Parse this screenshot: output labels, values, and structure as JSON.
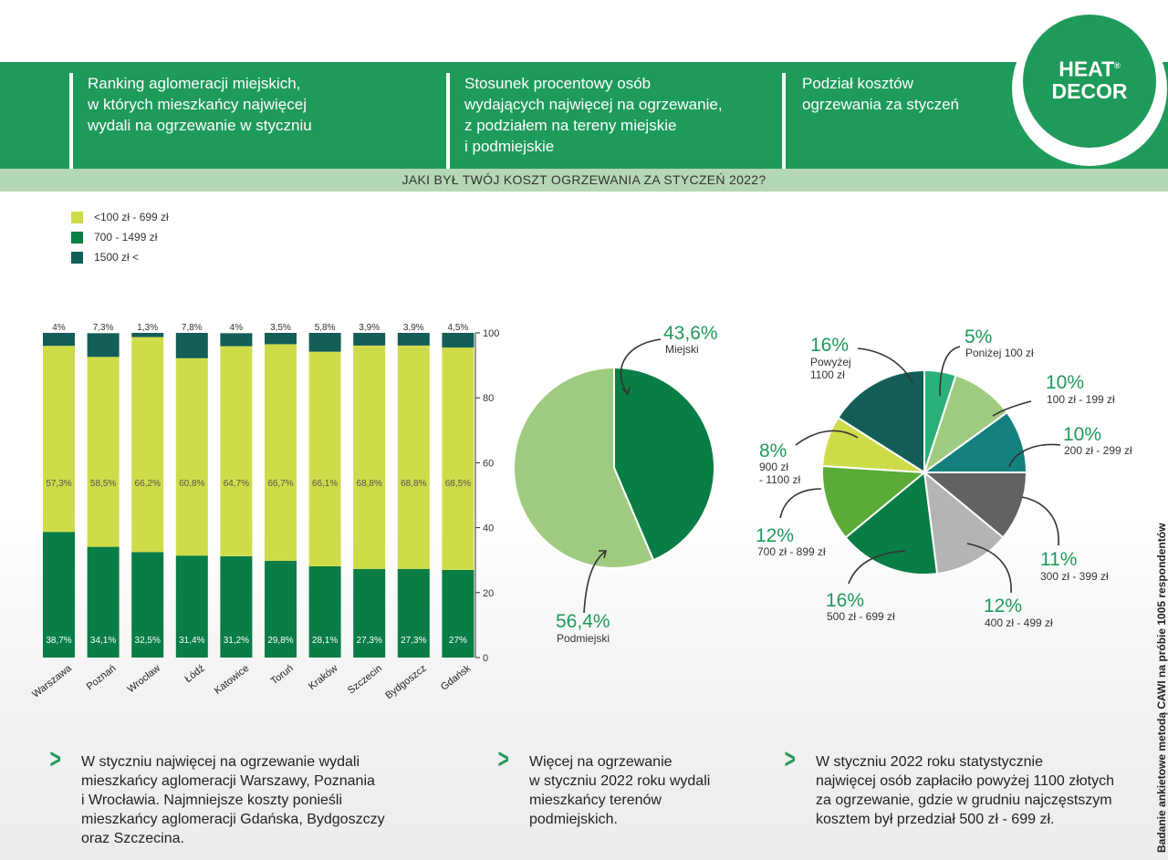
{
  "header": {
    "col1": "Ranking aglomeracji miejskich,\nw których mieszkańcy najwięcej\nwydali na ogrzewanie w styczniu",
    "col2": "Stosunek procentowy osób\nwydających najwięcej na ogrzewanie,\nz podziałem na tereny miejskie\ni podmiejskie",
    "col3": "Podział kosztów\nogrzewania za styczeń",
    "logo_line1": "HEAT",
    "logo_line2": "DECOR",
    "logo_mark": "®"
  },
  "subtitle": "JAKI BYŁ TWÓJ KOSZT OGRZEWANIA ZA STYCZEŃ 2022?",
  "legend": [
    {
      "label": "<100 zł - 699 zł",
      "color": "#cfdc4a"
    },
    {
      "label": "700 - 1499 zł",
      "color": "#087d45"
    },
    {
      "label": "1500 zł <",
      "color": "#135e56"
    }
  ],
  "colors": {
    "brand": "#1e9a5a",
    "light_bar": "#cfdc4a",
    "mid_bar": "#087d45",
    "dark_bar": "#135e56"
  },
  "chart_data": [
    {
      "type": "bar",
      "stacked": true,
      "categories": [
        "Warszawa",
        "Poznań",
        "Wrocław",
        "Łódź",
        "Katowice",
        "Toruń",
        "Kraków",
        "Szczecin",
        "Bydgoszcz",
        "Gdańsk"
      ],
      "series": [
        {
          "name": "700 - 1499 zł",
          "values": [
            38.7,
            34.1,
            32.5,
            31.4,
            31.2,
            29.8,
            28.1,
            27.3,
            27.3,
            27
          ],
          "labels": [
            "38,7%",
            "34,1%",
            "32,5%",
            "31,4%",
            "31,2%",
            "29,8%",
            "28,1%",
            "27,3%",
            "27,3%",
            "27%"
          ]
        },
        {
          "name": "<100 zł - 699 zł",
          "values": [
            57.3,
            58.5,
            66.2,
            60.8,
            64.7,
            66.7,
            66.1,
            68.8,
            68.8,
            68.5
          ],
          "labels": [
            "57,3%",
            "58,5%",
            "66,2%",
            "60,8%",
            "64,7%",
            "66,7%",
            "66,1%",
            "68,8%",
            "68,8%",
            "68,5%"
          ]
        },
        {
          "name": "1500 zł <",
          "values": [
            4,
            7.3,
            1.3,
            7.8,
            4,
            3.5,
            5.8,
            3.9,
            3.9,
            4.5
          ],
          "labels": [
            "4%",
            "7,3%",
            "1,3%",
            "7,8%",
            "4%",
            "3,5%",
            "5,8%",
            "3,9%",
            "3,9%",
            "4,5%"
          ]
        }
      ],
      "ylim": [
        0,
        100
      ],
      "yticks": [
        "0",
        "20",
        "40",
        "60",
        "80",
        "100"
      ],
      "axis_side": "right"
    },
    {
      "type": "pie",
      "slices": [
        {
          "label": "Miejski",
          "value": 43.6,
          "value_label": "43,6%",
          "color": "#087d45"
        },
        {
          "label": "Podmiejski",
          "value": 56.4,
          "value_label": "56,4%",
          "color": "#9fcb80"
        }
      ]
    },
    {
      "type": "pie",
      "slices": [
        {
          "label": "Poniżej 100 zł",
          "value": 5,
          "value_label": "5%",
          "color": "#2bb07a"
        },
        {
          "label": "100 zł - 199 zł",
          "value": 10,
          "value_label": "10%",
          "color": "#9fcb80"
        },
        {
          "label": "200 zł - 299 zł",
          "value": 10,
          "value_label": "10%",
          "color": "#15817f"
        },
        {
          "label": "300 zł - 399 zł",
          "value": 11,
          "value_label": "11%",
          "color": "#626262"
        },
        {
          "label": "400 zł - 499 zł",
          "value": 12,
          "value_label": "12%",
          "color": "#b4b4b4"
        },
        {
          "label": "500 zł - 699 zł",
          "value": 16,
          "value_label": "16%",
          "color": "#087d45"
        },
        {
          "label": "700 zł - 899 zł",
          "value": 12,
          "value_label": "12%",
          "color": "#5aab38"
        },
        {
          "label": "900 zł\n- 1100 zł",
          "value": 8,
          "value_label": "8%",
          "color": "#cfdc4a"
        },
        {
          "label": "Powyżej\n1100 zł",
          "value": 16,
          "value_label": "16%",
          "color": "#135e56"
        }
      ]
    }
  ],
  "bottom": {
    "text1": "W styczniu najwięcej na ogrzewanie wydali\nmieszkańcy aglomeracji Warszawy, Poznania\ni Wrocławia. Najmniejsze koszty ponieśli\nmieszkańcy aglomeracji Gdańska, Bydgoszczy\noraz Szczecina.",
    "text2": "Więcej na ogrzewanie\nw styczniu 2022 roku wydali\nmieszkańcy terenów\npodmiejskich.",
    "text3": "W styczniu 2022 roku statystycznie\nnajwięcej osób zapłaciło powyżej 1100 złotych\nza ogrzewanie, gdzie w grudniu najczęstszym\nkosztem był przedział 500 zł - 699 zł.",
    "chevron": ">"
  },
  "side_note": "Badanie ankietowe metodą CAWI na próbie 1005 respondentów"
}
